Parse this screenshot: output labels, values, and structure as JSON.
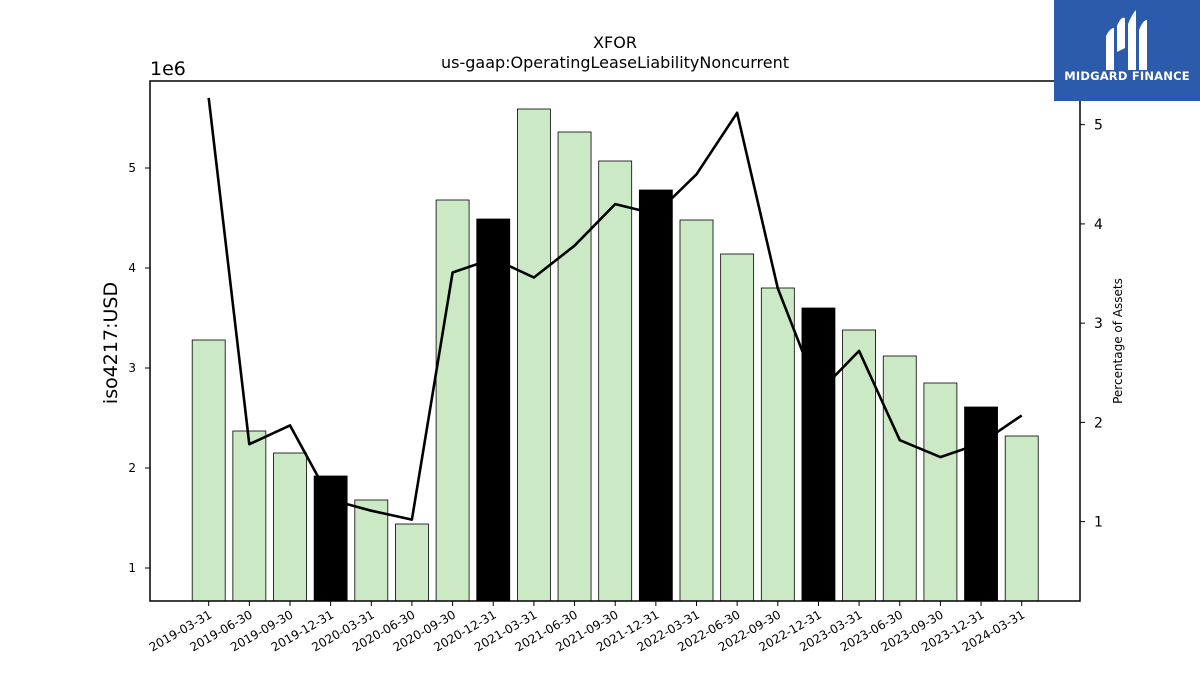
{
  "chart_data": {
    "type": "bar",
    "title": "XFOR",
    "subtitle": "us-gaap:OperatingLeaseLiabilityNoncurrent",
    "ylabel": "iso4217:USD",
    "y2label": "Percentage of Assets",
    "y_offset_label": "1e6",
    "ylim": [
      670000,
      5870000
    ],
    "y2lim": [
      0.2,
      5.44
    ],
    "yticks": [
      1,
      2,
      3,
      4,
      5
    ],
    "y2ticks": [
      1,
      2,
      3,
      4,
      5
    ],
    "categories": [
      "2019-03-31",
      "2019-06-30",
      "2019-09-30",
      "2019-12-31",
      "2020-03-31",
      "2020-06-30",
      "2020-09-30",
      "2020-12-31",
      "2021-03-31",
      "2021-06-30",
      "2021-09-30",
      "2021-12-31",
      "2022-03-31",
      "2022-06-30",
      "2022-09-30",
      "2022-12-31",
      "2023-03-31",
      "2023-06-30",
      "2023-09-30",
      "2023-12-31",
      "2024-03-31"
    ],
    "values": [
      3280000,
      2370000,
      2150000,
      1920000,
      1680000,
      1440000,
      4680000,
      4490000,
      5590000,
      5360000,
      5070000,
      4780000,
      4480000,
      4140000,
      3800000,
      3600000,
      3380000,
      3120000,
      2850000,
      2610000,
      2320000
    ],
    "bar_fill": [
      "#cce9c6",
      "#cce9c6",
      "#cce9c6",
      "#000000",
      "#cce9c6",
      "#cce9c6",
      "#cce9c6",
      "#000000",
      "#cce9c6",
      "#cce9c6",
      "#cce9c6",
      "#000000",
      "#cce9c6",
      "#cce9c6",
      "#cce9c6",
      "#000000",
      "#cce9c6",
      "#cce9c6",
      "#cce9c6",
      "#000000",
      "#cce9c6"
    ],
    "line_values": [
      5.27,
      1.78,
      1.97,
      1.22,
      1.11,
      1.02,
      3.51,
      3.65,
      3.46,
      3.78,
      4.2,
      4.1,
      4.5,
      5.12,
      3.35,
      2.3,
      2.72,
      1.82,
      1.65,
      1.79,
      2.07
    ],
    "colors": {
      "bar_light": "#cce9c6",
      "bar_dark": "#000000",
      "line": "#000000"
    }
  },
  "logo": {
    "text": "MIDGARD FINANCE",
    "background": "#2d5bab"
  }
}
